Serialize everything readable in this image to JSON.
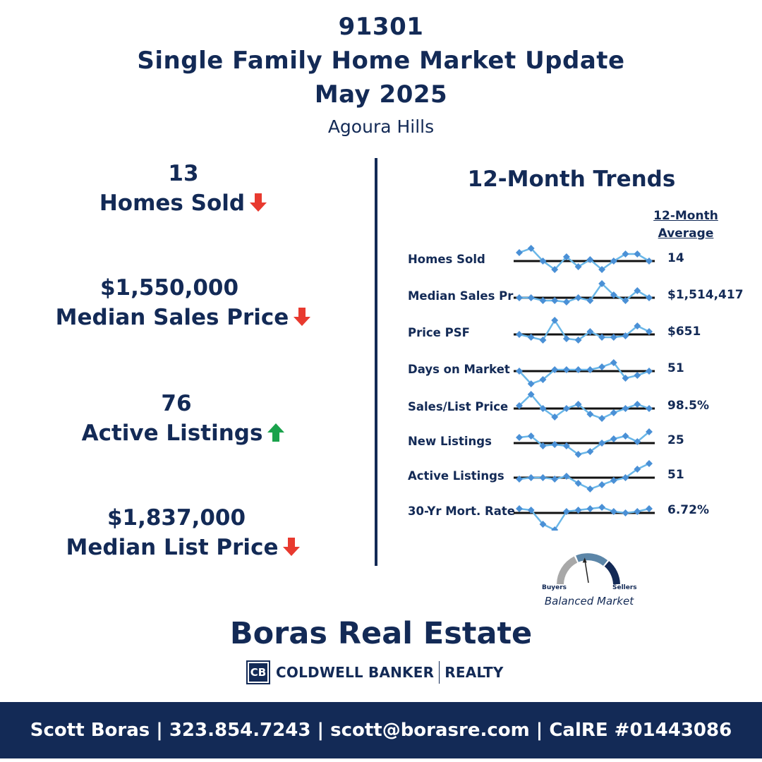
{
  "header": {
    "zip": "91301",
    "title": "Single Family Home Market Update",
    "period": "May 2025",
    "city": "Agoura Hills"
  },
  "stats": [
    {
      "value": "13",
      "label": "Homes Sold",
      "trend": "down",
      "arrow_icon": "red-down-arrow-icon"
    },
    {
      "value": "$1,550,000",
      "label": "Median Sales Price",
      "trend": "down",
      "arrow_icon": "red-down-arrow-icon"
    },
    {
      "value": "76",
      "label": "Active Listings",
      "trend": "up",
      "arrow_icon": "green-up-arrow-icon"
    },
    {
      "value": "$1,837,000",
      "label": "Median List Price",
      "trend": "down",
      "arrow_icon": "red-down-arrow-icon"
    }
  ],
  "trends": {
    "title": "12-Month Trends",
    "avg_header_line1": "12-Month",
    "avg_header_line2": "Average",
    "rows": [
      {
        "label": "Homes Sold",
        "avg": "14",
        "series": [
          0.6,
          0.9,
          0.0,
          -0.6,
          0.3,
          -0.4,
          0.1,
          -0.6,
          0.0,
          0.5,
          0.5,
          0.0
        ]
      },
      {
        "label": "Median Sales Pr",
        "avg": "$1,514,417",
        "series": [
          0.0,
          0.0,
          -0.2,
          -0.2,
          -0.3,
          0.0,
          -0.2,
          1.0,
          0.2,
          -0.2,
          0.5,
          0.0
        ]
      },
      {
        "label": "Price PSF",
        "avg": "$651",
        "series": [
          0.0,
          -0.2,
          -0.4,
          1.0,
          -0.3,
          -0.4,
          0.2,
          -0.2,
          -0.2,
          -0.1,
          0.6,
          0.2
        ]
      },
      {
        "label": "Days on Market",
        "avg": "51",
        "series": [
          0.0,
          -0.9,
          -0.6,
          0.1,
          0.1,
          0.1,
          0.1,
          0.3,
          0.6,
          -0.5,
          -0.3,
          0.0
        ]
      },
      {
        "label": "Sales/List Price",
        "avg": "98.5%",
        "series": [
          0.2,
          1.0,
          0.0,
          -0.6,
          0.0,
          0.3,
          -0.4,
          -0.7,
          -0.3,
          0.0,
          0.3,
          0.0
        ]
      },
      {
        "label": "New Listings",
        "avg": "25",
        "series": [
          0.4,
          0.5,
          -0.2,
          -0.1,
          -0.2,
          -0.8,
          -0.6,
          0.0,
          0.3,
          0.5,
          0.1,
          0.8
        ]
      },
      {
        "label": "Active Listings",
        "avg": "51",
        "series": [
          -0.1,
          0.0,
          0.0,
          -0.1,
          0.1,
          -0.4,
          -0.8,
          -0.5,
          -0.2,
          0.0,
          0.6,
          1.0
        ]
      },
      {
        "label": "30-Yr Mort. Rate",
        "avg": "6.72%",
        "series": [
          0.3,
          0.2,
          -0.8,
          -1.2,
          0.1,
          0.2,
          0.3,
          0.4,
          0.1,
          0.0,
          0.1,
          0.3
        ]
      }
    ]
  },
  "gauge": {
    "left_label": "Buyers",
    "right_label": "Sellers",
    "caption": "Balanced Market",
    "needle_position": 0.45
  },
  "brand": {
    "name": "Boras Real Estate",
    "logo_mark": "CB",
    "logo_word1": "COLDWELL BANKER",
    "logo_word2": "REALTY"
  },
  "footer": {
    "contact": "Scott Boras | 323.854.7243 | scott@borasre.com | CalRE #01443086"
  },
  "colors": {
    "navy": "#132a56",
    "spark_line": "#6ab7e8",
    "spark_point": "#4a90d6",
    "arrow_down": "#e83a2f",
    "arrow_up": "#1aa24b",
    "gauge_buyers": "#a8a8a8",
    "gauge_balanced": "#5c86a8",
    "gauge_sellers": "#132a56"
  }
}
